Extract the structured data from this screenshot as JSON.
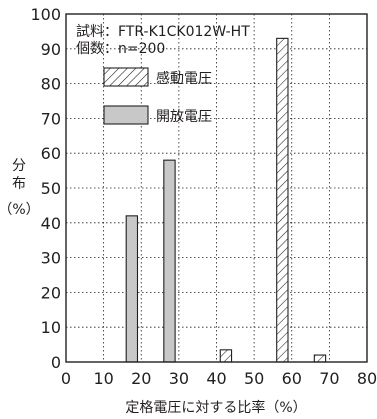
{
  "chart_data": {
    "type": "bar",
    "title": "",
    "annotation_lines": [
      "試料：FTR-K1CK012W-HT",
      "個数：n=200"
    ],
    "xlabel": "定格電圧に対する比率（%）",
    "ylabel_lines": [
      "分",
      "布",
      "（%）"
    ],
    "xlim": [
      0,
      80
    ],
    "ylim": [
      0,
      100
    ],
    "xticks": [
      0,
      10,
      20,
      30,
      40,
      50,
      60,
      70,
      80
    ],
    "yticks": [
      0,
      10,
      20,
      30,
      40,
      50,
      60,
      70,
      80,
      90,
      100
    ],
    "grid": true,
    "legend_position": "top-left",
    "bin_width": 5,
    "series": [
      {
        "name": "感動電圧",
        "pattern": "hatched",
        "bars": [
          {
            "x_start": 40,
            "value": 3.5
          },
          {
            "x_start": 55,
            "value": 93
          },
          {
            "x_start": 65,
            "value": 2
          }
        ]
      },
      {
        "name": "開放電圧",
        "pattern": "solid",
        "color": "#c8c8c8",
        "bars": [
          {
            "x_start": 15,
            "value": 42
          },
          {
            "x_start": 25,
            "value": 58
          }
        ]
      }
    ]
  }
}
